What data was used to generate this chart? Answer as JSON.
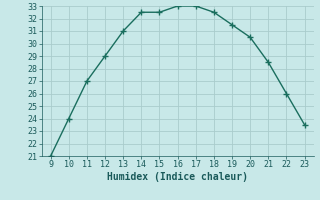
{
  "x": [
    9,
    10,
    11,
    12,
    13,
    14,
    15,
    16,
    17,
    18,
    19,
    20,
    21,
    22,
    23
  ],
  "y": [
    21,
    24,
    27,
    29,
    31,
    32.5,
    32.5,
    33,
    33,
    32.5,
    31.5,
    30.5,
    28.5,
    26,
    23.5
  ],
  "xlabel": "Humidex (Indice chaleur)",
  "ylim": [
    21,
    33
  ],
  "xlim": [
    8.5,
    23.5
  ],
  "yticks": [
    21,
    22,
    23,
    24,
    25,
    26,
    27,
    28,
    29,
    30,
    31,
    32,
    33
  ],
  "xticks": [
    9,
    10,
    11,
    12,
    13,
    14,
    15,
    16,
    17,
    18,
    19,
    20,
    21,
    22,
    23
  ],
  "line_color": "#1a6e5e",
  "marker_color": "#1a6e5e",
  "bg_color": "#c8e8e8",
  "grid_color": "#aacccc",
  "tick_label_color": "#1a5a5a",
  "xlabel_color": "#1a5a5a",
  "xlabel_fontsize": 7,
  "tick_fontsize": 6
}
